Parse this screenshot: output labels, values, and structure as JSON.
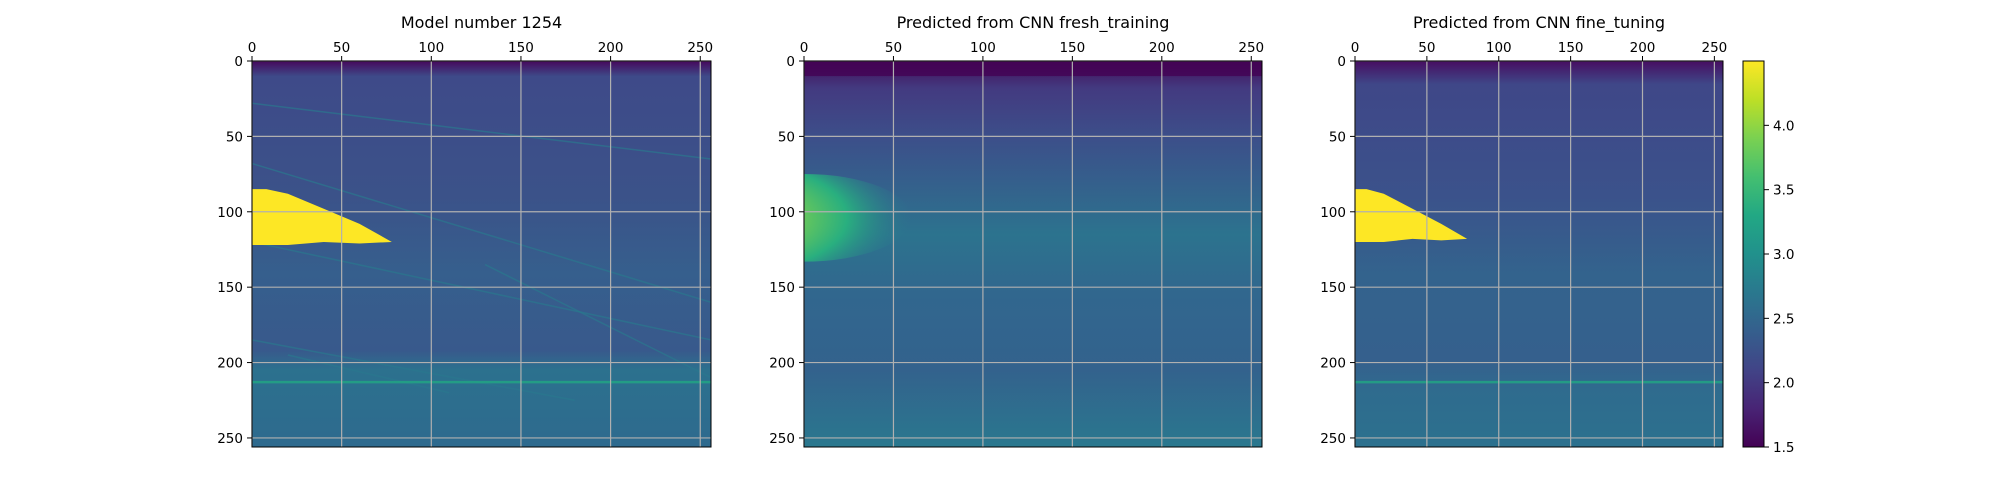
{
  "chart_data": [
    {
      "type": "heatmap",
      "title": "Model number 1254",
      "x_ticks": [
        "0",
        "50",
        "100",
        "150",
        "200",
        "250"
      ],
      "y_ticks": [
        "0",
        "50",
        "100",
        "150",
        "200",
        "250"
      ],
      "xlim": [
        0,
        256
      ],
      "ylim": [
        256,
        0
      ],
      "x_axis_position": "top",
      "grid": true,
      "features": {
        "bright_wedge": {
          "x_range": [
            0,
            78
          ],
          "y_range": [
            85,
            122
          ],
          "value": 4.5
        },
        "horizontal_line_depth": 213
      }
    },
    {
      "type": "heatmap",
      "title": "Predicted from CNN fresh_training",
      "x_ticks": [
        "0",
        "50",
        "100",
        "150",
        "200",
        "250"
      ],
      "y_ticks": [
        "0",
        "50",
        "100",
        "150",
        "200",
        "250"
      ],
      "xlim": [
        0,
        256
      ],
      "ylim": [
        256,
        0
      ],
      "x_axis_position": "top",
      "grid": true,
      "features": {
        "bright_blob": {
          "x_range": [
            0,
            60
          ],
          "y_range": [
            88,
            120
          ],
          "value": 3.9
        }
      }
    },
    {
      "type": "heatmap",
      "title": "Predicted from CNN fine_tuning",
      "x_ticks": [
        "0",
        "50",
        "100",
        "150",
        "200",
        "250"
      ],
      "y_ticks": [
        "0",
        "50",
        "100",
        "150",
        "200",
        "250"
      ],
      "xlim": [
        0,
        256
      ],
      "ylim": [
        256,
        0
      ],
      "x_axis_position": "top",
      "grid": true,
      "features": {
        "bright_wedge": {
          "x_range": [
            0,
            78
          ],
          "y_range": [
            85,
            120
          ],
          "value": 4.4
        },
        "horizontal_line_depth": 213
      }
    }
  ],
  "colorbar": {
    "colormap": "viridis",
    "range": [
      1.5,
      4.5
    ],
    "ticks": [
      "1.5",
      "2.0",
      "2.5",
      "3.0",
      "3.5",
      "4.0"
    ]
  }
}
